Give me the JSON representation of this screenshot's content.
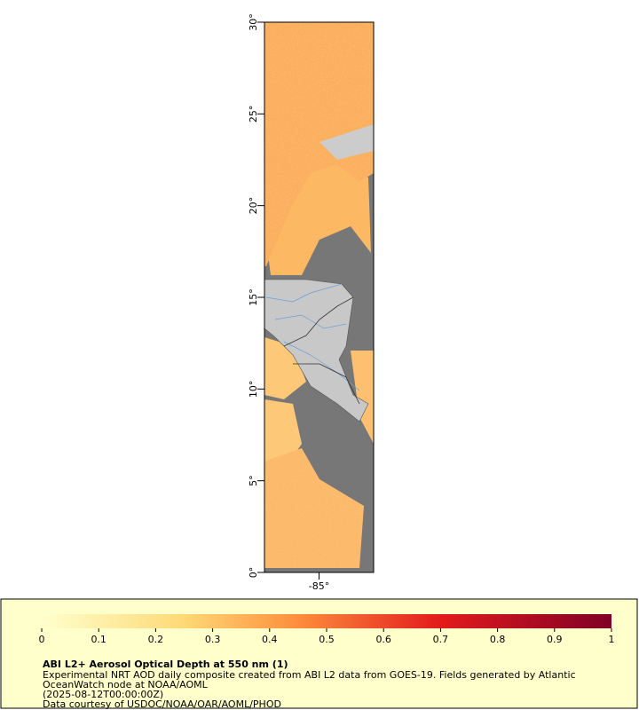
{
  "map": {
    "lat_range": [
      0,
      30
    ],
    "lon_range": [
      -88,
      -82
    ],
    "lat_ticks": [
      {
        "value": 0,
        "label": "0°"
      },
      {
        "value": 5,
        "label": "5°"
      },
      {
        "value": 10,
        "label": "10°"
      },
      {
        "value": 15,
        "label": "15°"
      },
      {
        "value": 20,
        "label": "20°"
      },
      {
        "value": 25,
        "label": "25°"
      },
      {
        "value": 30,
        "label": "30°"
      }
    ],
    "lon_ticks": [
      {
        "value": -85,
        "label": "-85°"
      }
    ]
  },
  "legend": {
    "title": "ABI L2+ Aerosol Optical Depth at 550 nm (1)",
    "lines": [
      "Experimental NRT AOD daily composite created from ABI L2 data from GOES-19. Fields generated by Atlantic",
      "OceanWatch node at NOAA/AOML",
      "(2025-08-12T00:00:00Z)",
      "Data courtesy of USDOC/NOAA/OAR/AOML/PHOD"
    ],
    "colorbar": {
      "range": [
        0,
        1
      ],
      "ticks": [
        0,
        0.1,
        0.2,
        0.3,
        0.4,
        0.5,
        0.6,
        0.7,
        0.8,
        0.9,
        1
      ]
    }
  }
}
